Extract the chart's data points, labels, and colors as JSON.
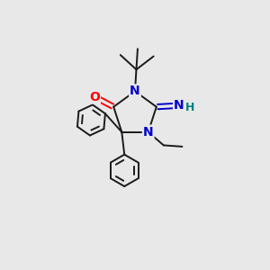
{
  "background_color": "#e8e8e8",
  "figure_size": [
    3.0,
    3.0
  ],
  "dpi": 100,
  "atom_colors": {
    "N": "#0000cc",
    "O": "#ff0000",
    "H": "#008080",
    "C": "#1a1a1a"
  },
  "bond_color": "#1a1a1a",
  "bond_width": 1.4
}
